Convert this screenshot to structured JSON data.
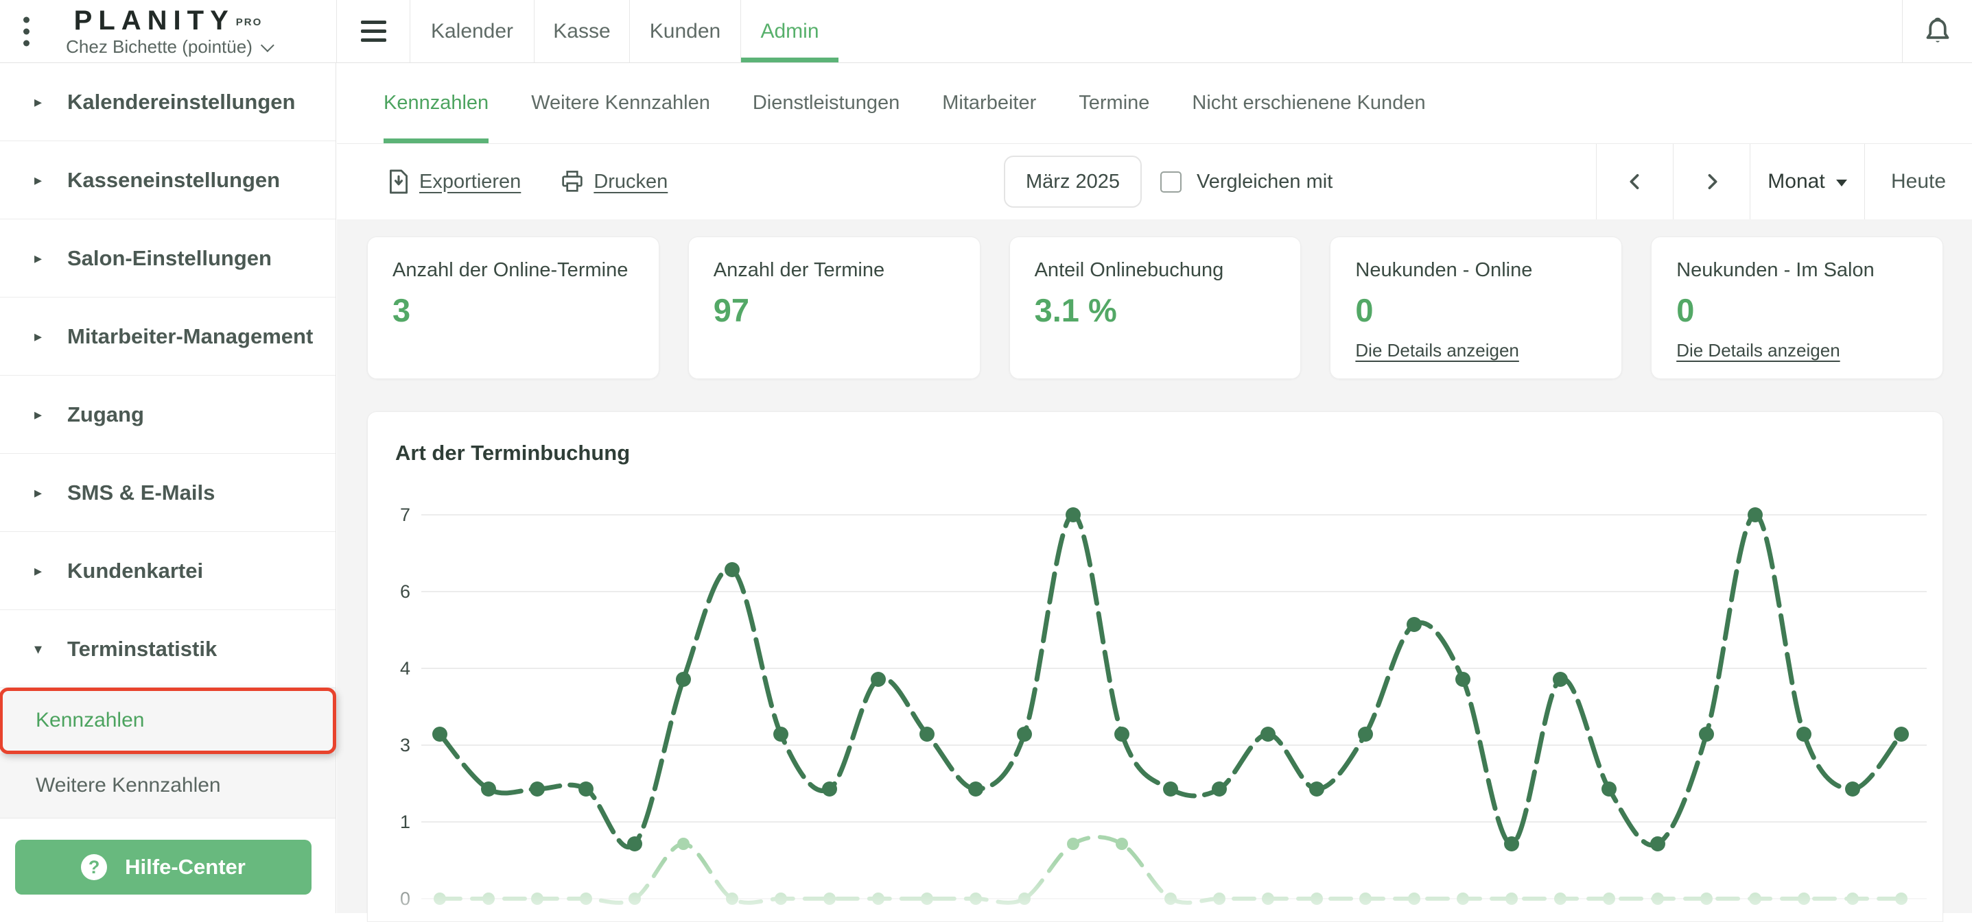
{
  "colors": {
    "accent_green": "#4ca35f",
    "tab_green": "#57b06b",
    "button_green": "#68b97e",
    "value_green": "#53a866",
    "line_dark_green": "#3f7a53",
    "line_light_green": "#a9d6ae",
    "annotation_red": "#e8432d",
    "content_bg": "#f4f4f4"
  },
  "topbar": {
    "logo": "PLANITY",
    "logo_sup": "PRO",
    "salon_name": "Chez Bichette (pointüe)",
    "tabs": [
      {
        "label": "Kalender",
        "active": false
      },
      {
        "label": "Kasse",
        "active": false
      },
      {
        "label": "Kunden",
        "active": false
      },
      {
        "label": "Admin",
        "active": true
      }
    ],
    "icons": [
      "kebab-menu-icon",
      "hamburger-menu-icon",
      "bell-icon"
    ]
  },
  "sidebar": {
    "sections": [
      {
        "label": "Kalendereinstellungen",
        "expanded": false
      },
      {
        "label": "Kasseneinstellungen",
        "expanded": false
      },
      {
        "label": "Salon-Einstellungen",
        "expanded": false
      },
      {
        "label": "Mitarbeiter-Management",
        "expanded": false
      },
      {
        "label": "Zugang",
        "expanded": false
      },
      {
        "label": "SMS & E-Mails",
        "expanded": false
      },
      {
        "label": "Kundenkartei",
        "expanded": false
      },
      {
        "label": "Terminstatistik",
        "expanded": true
      }
    ],
    "subitems": [
      {
        "label": "Kennzahlen",
        "active": true,
        "annotated": true
      },
      {
        "label": "Weitere Kennzahlen",
        "active": false,
        "annotated": false
      }
    ],
    "help_button_label": "Hilfe-Center"
  },
  "subtabs": [
    {
      "label": "Kennzahlen",
      "active": true
    },
    {
      "label": "Weitere Kennzahlen",
      "active": false
    },
    {
      "label": "Dienstleistungen",
      "active": false
    },
    {
      "label": "Mitarbeiter",
      "active": false
    },
    {
      "label": "Termine",
      "active": false
    },
    {
      "label": "Nicht erschienene Kunden",
      "active": false
    }
  ],
  "toolbar": {
    "export_label": "Exportieren",
    "print_label": "Drucken",
    "period_value": "März 2025",
    "compare_label": "Vergleichen mit",
    "compare_checked": false,
    "view_select_value": "Monat",
    "today_label": "Heute"
  },
  "cards": [
    {
      "title": "Anzahl der Online-Termine",
      "value": "3",
      "link": ""
    },
    {
      "title": "Anzahl der Termine",
      "value": "97",
      "link": ""
    },
    {
      "title": "Anteil Onlinebuchung",
      "value": "3.1 %",
      "link": ""
    },
    {
      "title": "Neukunden - Online",
      "value": "0",
      "link": "Die Details anzeigen"
    },
    {
      "title": "Neukunden - Im Salon",
      "value": "0",
      "link": "Die Details anzeigen"
    }
  ],
  "chart_data": {
    "type": "line",
    "title": "Art der Terminbuchung",
    "x": [
      1,
      2,
      3,
      4,
      5,
      6,
      7,
      8,
      9,
      10,
      11,
      12,
      13,
      14,
      15,
      16,
      17,
      18,
      19,
      20,
      21,
      22,
      23,
      24,
      25,
      26,
      27,
      28,
      29,
      30,
      31
    ],
    "x_axis_labels_visible": false,
    "legend_visible": false,
    "grid": true,
    "ylim": [
      0,
      7
    ],
    "yticks": [
      {
        "label": "7",
        "pos": 7.0
      },
      {
        "label": "6",
        "pos": 5.6
      },
      {
        "label": "4",
        "pos": 4.2
      },
      {
        "label": "3",
        "pos": 2.8
      },
      {
        "label": "1",
        "pos": 1.4
      },
      {
        "label": "0",
        "pos": 0.0
      }
    ],
    "series": [
      {
        "name": "dark-green",
        "color": "#3f7a53",
        "dash": "42 15",
        "dot_radius": 11,
        "values": [
          3,
          2,
          2,
          2,
          1,
          4,
          6,
          3,
          2,
          4,
          3,
          2,
          3,
          7,
          3,
          2,
          2,
          3,
          2,
          3,
          5,
          4,
          1,
          4,
          2,
          1,
          3,
          7,
          3,
          2,
          3
        ]
      },
      {
        "name": "light-green",
        "color": "#a9d6ae",
        "dash": "30 17",
        "dot_radius": 9,
        "values": [
          0,
          0,
          0,
          0,
          0,
          1,
          0,
          0,
          0,
          0,
          0,
          0,
          0,
          1,
          1,
          0,
          0,
          0,
          0,
          0,
          0,
          0,
          0,
          0,
          0,
          0,
          0,
          0,
          0,
          0,
          0
        ]
      }
    ]
  }
}
